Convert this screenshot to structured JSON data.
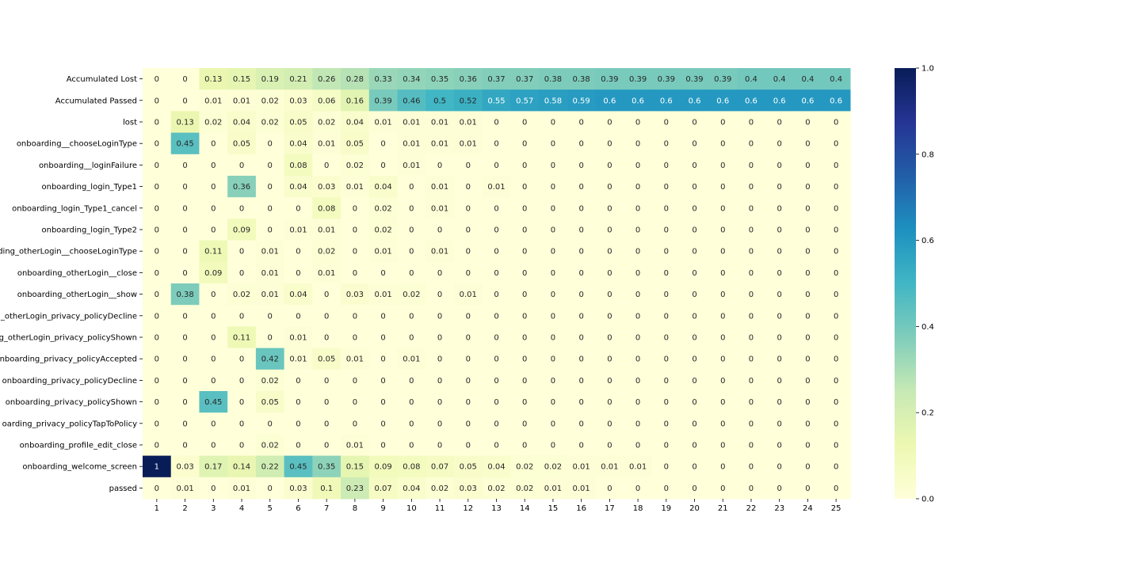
{
  "chart_data": {
    "type": "heatmap",
    "title": "",
    "xlabel": "",
    "ylabel": "",
    "x_categories": [
      "1",
      "2",
      "3",
      "4",
      "5",
      "6",
      "7",
      "8",
      "9",
      "10",
      "11",
      "12",
      "13",
      "14",
      "15",
      "16",
      "17",
      "18",
      "19",
      "20",
      "21",
      "22",
      "23",
      "24",
      "25"
    ],
    "y_categories": [
      "Accumulated Lost",
      "Accumulated Passed",
      "lost",
      "onboarding__chooseLoginType",
      "onboarding__loginFailure",
      "onboarding_login_Type1",
      "onboarding_login_Type1_cancel",
      "onboarding_login_Type2",
      "ding_otherLogin__chooseLoginType",
      "onboarding_otherLogin__close",
      "onboarding_otherLogin__show",
      "_otherLogin_privacy_policyDecline",
      "g_otherLogin_privacy_policyShown",
      "onboarding_privacy_policyAccepted",
      "onboarding_privacy_policyDecline",
      "onboarding_privacy_policyShown",
      "oarding_privacy_policyTapToPolicy",
      "onboarding_profile_edit_close",
      "onboarding_welcome_screen",
      "passed"
    ],
    "values": [
      [
        0,
        0,
        0.13,
        0.15,
        0.19,
        0.21,
        0.26,
        0.28,
        0.33,
        0.34,
        0.35,
        0.36,
        0.37,
        0.37,
        0.38,
        0.38,
        0.39,
        0.39,
        0.39,
        0.39,
        0.39,
        0.4,
        0.4,
        0.4,
        0.4
      ],
      [
        0,
        0,
        0.01,
        0.01,
        0.02,
        0.03,
        0.06,
        0.16,
        0.39,
        0.46,
        0.5,
        0.52,
        0.55,
        0.57,
        0.58,
        0.59,
        0.6,
        0.6,
        0.6,
        0.6,
        0.6,
        0.6,
        0.6,
        0.6,
        0.6
      ],
      [
        0,
        0.13,
        0.02,
        0.04,
        0.02,
        0.05,
        0.02,
        0.04,
        0.01,
        0.01,
        0.01,
        0.01,
        0,
        0,
        0,
        0,
        0,
        0,
        0,
        0,
        0,
        0,
        0,
        0,
        0
      ],
      [
        0,
        0.45,
        0,
        0.05,
        0,
        0.04,
        0.01,
        0.05,
        0,
        0.01,
        0.01,
        0.01,
        0,
        0,
        0,
        0,
        0,
        0,
        0,
        0,
        0,
        0,
        0,
        0,
        0
      ],
      [
        0,
        0,
        0,
        0,
        0,
        0.08,
        0,
        0.02,
        0,
        0.01,
        0,
        0,
        0,
        0,
        0,
        0,
        0,
        0,
        0,
        0,
        0,
        0,
        0,
        0,
        0
      ],
      [
        0,
        0,
        0,
        0.36,
        0,
        0.04,
        0.03,
        0.01,
        0.04,
        0,
        0.01,
        0,
        0.01,
        0,
        0,
        0,
        0,
        0,
        0,
        0,
        0,
        0,
        0,
        0,
        0
      ],
      [
        0,
        0,
        0,
        0,
        0,
        0,
        0.08,
        0,
        0.02,
        0,
        0.01,
        0,
        0,
        0,
        0,
        0,
        0,
        0,
        0,
        0,
        0,
        0,
        0,
        0,
        0
      ],
      [
        0,
        0,
        0,
        0.09,
        0,
        0.01,
        0.01,
        0,
        0.02,
        0,
        0,
        0,
        0,
        0,
        0,
        0,
        0,
        0,
        0,
        0,
        0,
        0,
        0,
        0,
        0
      ],
      [
        0,
        0,
        0.11,
        0,
        0.01,
        0,
        0.02,
        0,
        0.01,
        0,
        0.01,
        0,
        0,
        0,
        0,
        0,
        0,
        0,
        0,
        0,
        0,
        0,
        0,
        0,
        0
      ],
      [
        0,
        0,
        0.09,
        0,
        0.01,
        0,
        0.01,
        0,
        0,
        0,
        0,
        0,
        0,
        0,
        0,
        0,
        0,
        0,
        0,
        0,
        0,
        0,
        0,
        0,
        0
      ],
      [
        0,
        0.38,
        0,
        0.02,
        0.01,
        0.04,
        0,
        0.03,
        0.01,
        0.02,
        0,
        0.01,
        0,
        0,
        0,
        0,
        0,
        0,
        0,
        0,
        0,
        0,
        0,
        0,
        0
      ],
      [
        0,
        0,
        0,
        0,
        0,
        0,
        0,
        0,
        0,
        0,
        0,
        0,
        0,
        0,
        0,
        0,
        0,
        0,
        0,
        0,
        0,
        0,
        0,
        0,
        0
      ],
      [
        0,
        0,
        0,
        0.11,
        0,
        0.01,
        0,
        0,
        0,
        0,
        0,
        0,
        0,
        0,
        0,
        0,
        0,
        0,
        0,
        0,
        0,
        0,
        0,
        0,
        0
      ],
      [
        0,
        0,
        0,
        0,
        0.42,
        0.01,
        0.05,
        0.01,
        0,
        0.01,
        0,
        0,
        0,
        0,
        0,
        0,
        0,
        0,
        0,
        0,
        0,
        0,
        0,
        0,
        0
      ],
      [
        0,
        0,
        0,
        0,
        0.02,
        0,
        0,
        0,
        0,
        0,
        0,
        0,
        0,
        0,
        0,
        0,
        0,
        0,
        0,
        0,
        0,
        0,
        0,
        0,
        0
      ],
      [
        0,
        0,
        0.45,
        0,
        0.05,
        0,
        0,
        0,
        0,
        0,
        0,
        0,
        0,
        0,
        0,
        0,
        0,
        0,
        0,
        0,
        0,
        0,
        0,
        0,
        0
      ],
      [
        0,
        0,
        0,
        0,
        0,
        0,
        0,
        0,
        0,
        0,
        0,
        0,
        0,
        0,
        0,
        0,
        0,
        0,
        0,
        0,
        0,
        0,
        0,
        0,
        0
      ],
      [
        0,
        0,
        0,
        0,
        0.02,
        0,
        0,
        0.01,
        0,
        0,
        0,
        0,
        0,
        0,
        0,
        0,
        0,
        0,
        0,
        0,
        0,
        0,
        0,
        0,
        0
      ],
      [
        1,
        0.03,
        0.17,
        0.14,
        0.22,
        0.45,
        0.35,
        0.15,
        0.09,
        0.08,
        0.07,
        0.05,
        0.04,
        0.02,
        0.02,
        0.01,
        0.01,
        0.01,
        0,
        0,
        0,
        0,
        0,
        0,
        0
      ],
      [
        0,
        0.01,
        0,
        0.01,
        0,
        0.03,
        0.1,
        0.23,
        0.07,
        0.04,
        0.02,
        0.03,
        0.02,
        0.02,
        0.01,
        0.01,
        0,
        0,
        0,
        0,
        0,
        0,
        0,
        0,
        0
      ]
    ],
    "value_range": [
      0,
      1
    ],
    "colormap": "YlGnBu",
    "colorbar": {
      "ticks": [
        0.0,
        0.2,
        0.4,
        0.6,
        0.8,
        1.0
      ],
      "tick_labels": [
        "0.0",
        "0.2",
        "0.4",
        "0.6",
        "0.8",
        "1.0"
      ],
      "placement": "right"
    },
    "annotations": true,
    "grid": false,
    "colors": {
      "low": "#ffffd9",
      "high": "#081d58",
      "text_dark": "#262626",
      "text_light": "#ffffff"
    }
  }
}
